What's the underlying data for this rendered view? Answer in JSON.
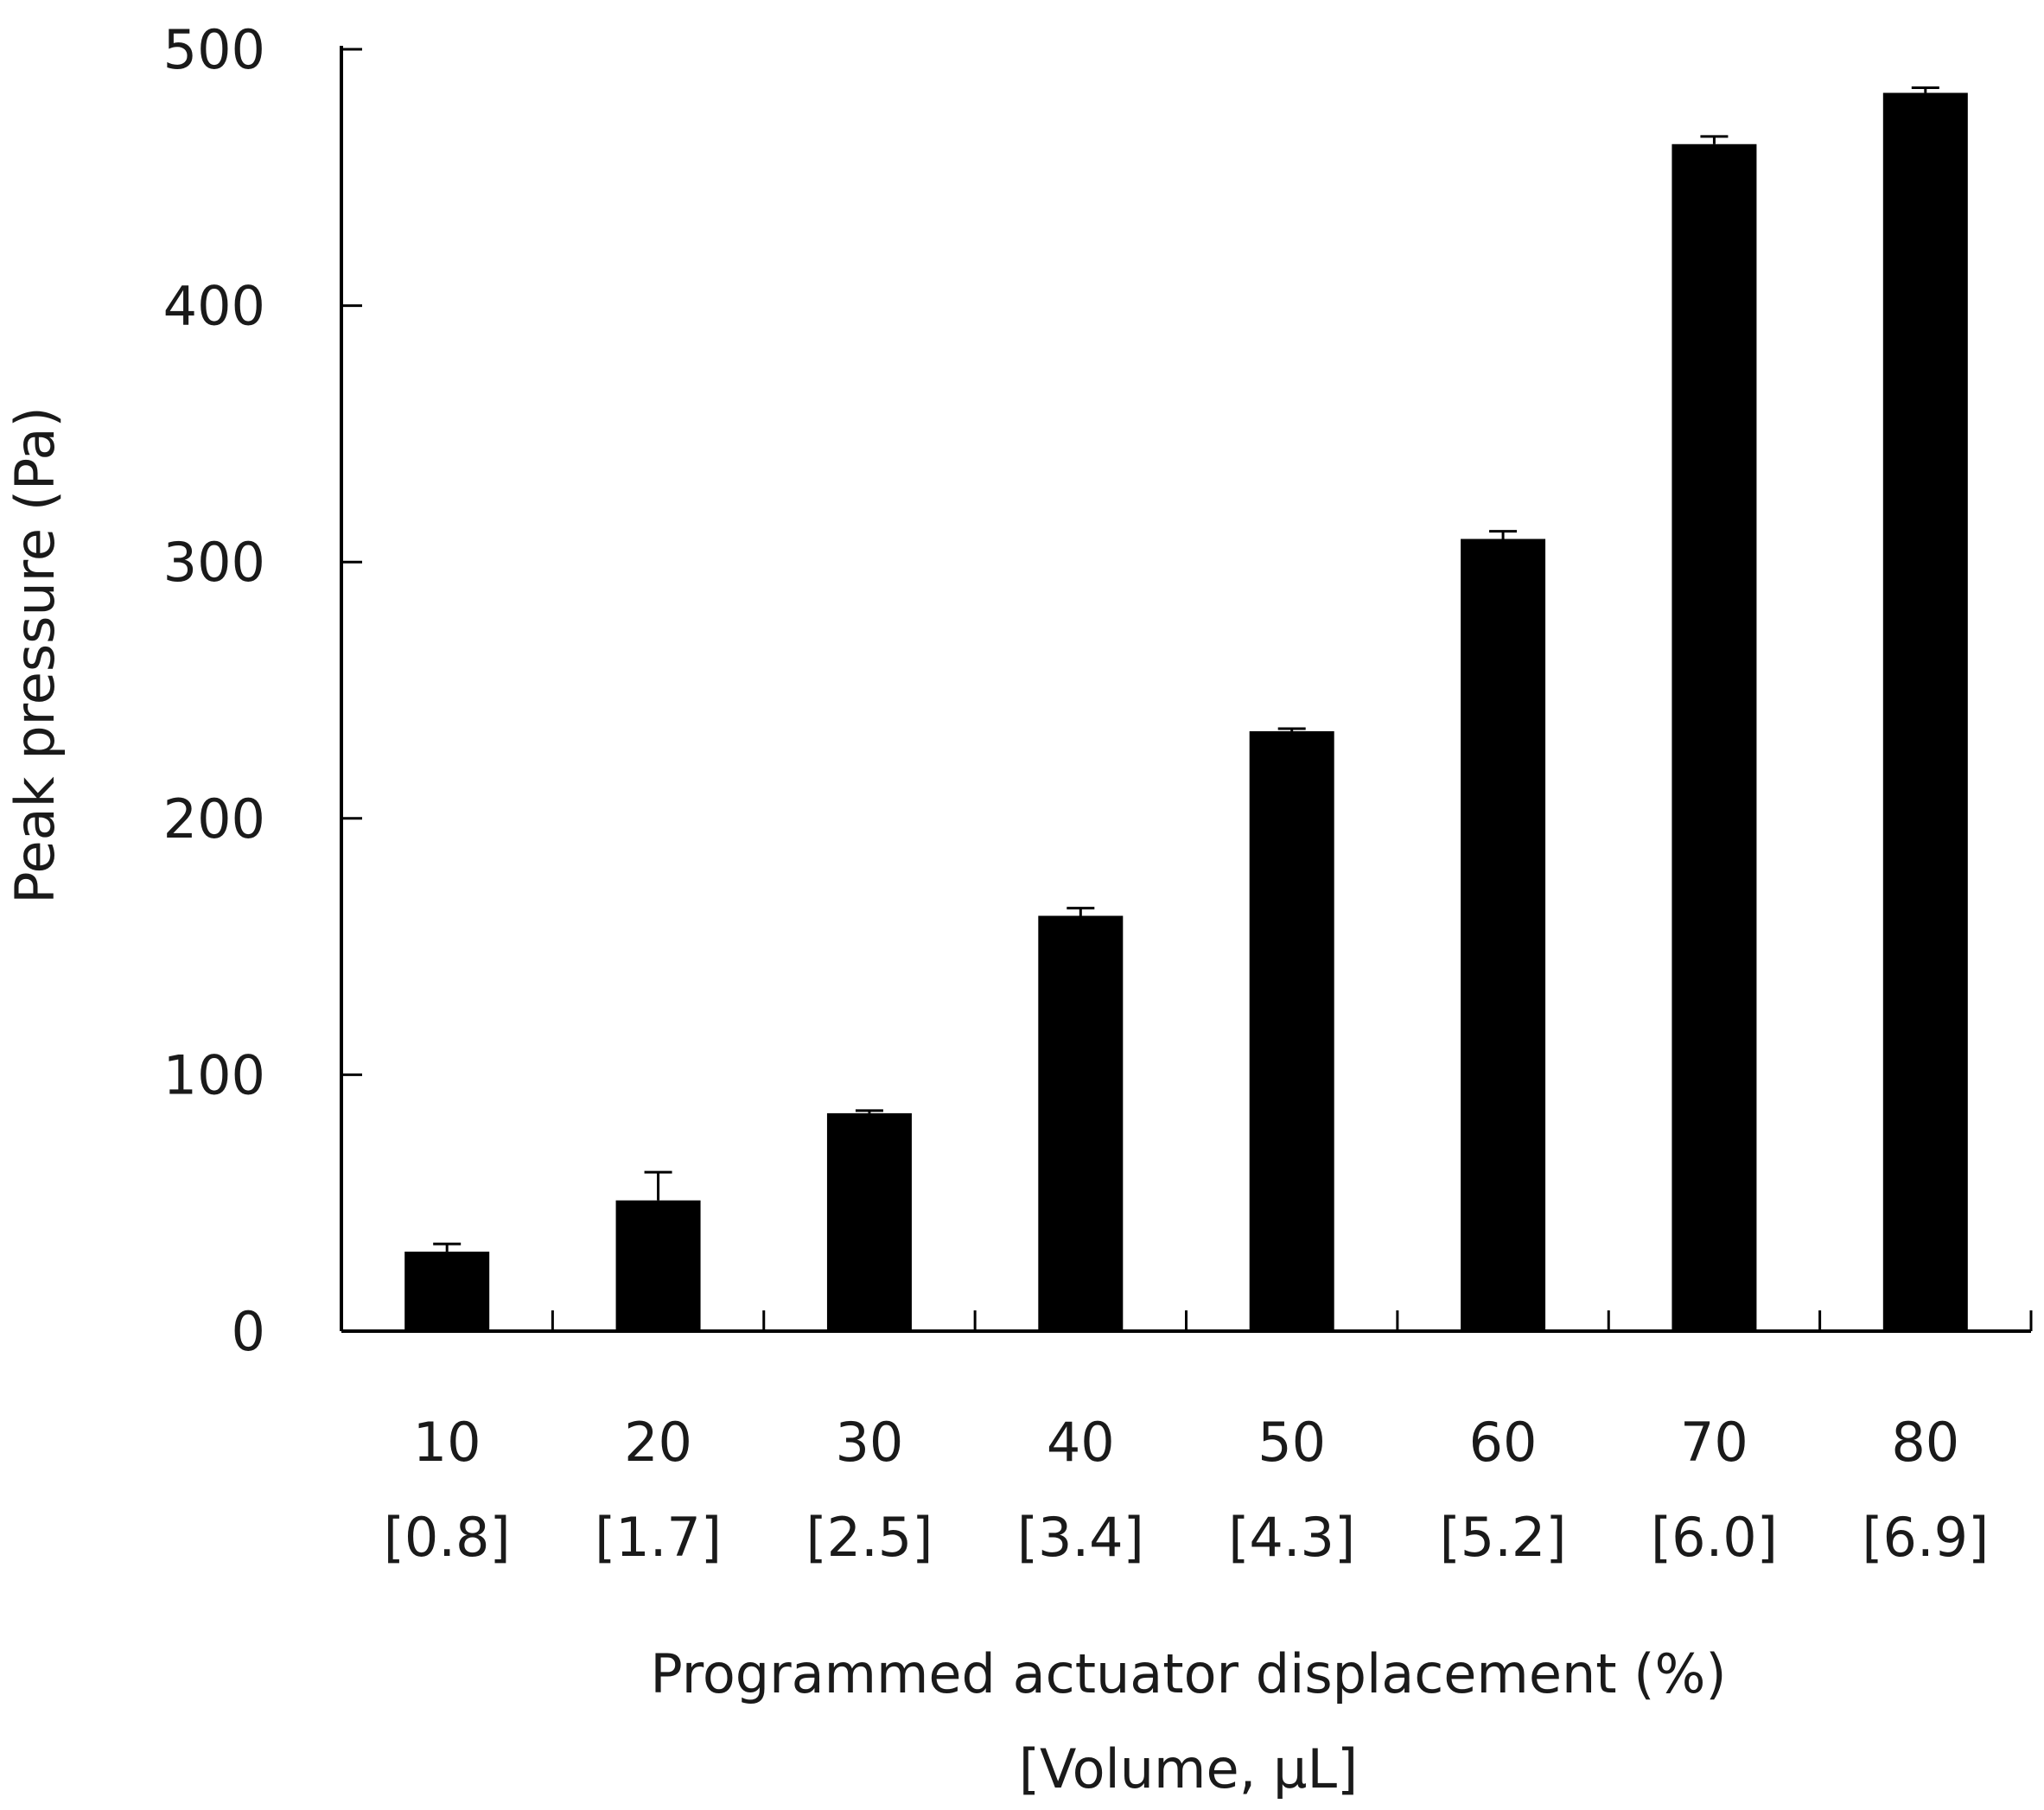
{
  "chart_data": {
    "type": "bar",
    "title": "",
    "ylabel": "Peak pressure (Pa)",
    "xlabel": [
      "Programmed actuator displacement (%)",
      "[Volume, µL]"
    ],
    "categories": [
      "10",
      "20",
      "30",
      "40",
      "50",
      "60",
      "70",
      "80"
    ],
    "category_sublabels": [
      "[0.8]",
      "[1.7]",
      "[2.5]",
      "[3.4]",
      "[4.3]",
      "[5.2]",
      "[6.0]",
      "[6.9]"
    ],
    "values": [
      31,
      51,
      85,
      162,
      234,
      309,
      463,
      483
    ],
    "error_plus": [
      3,
      11,
      1,
      3,
      1,
      3,
      3,
      2
    ],
    "ylim": [
      0,
      500
    ],
    "yticks": [
      "0",
      "100",
      "200",
      "300",
      "400",
      "500"
    ],
    "grid": false,
    "legend": "none",
    "bar_color": "#000000"
  }
}
